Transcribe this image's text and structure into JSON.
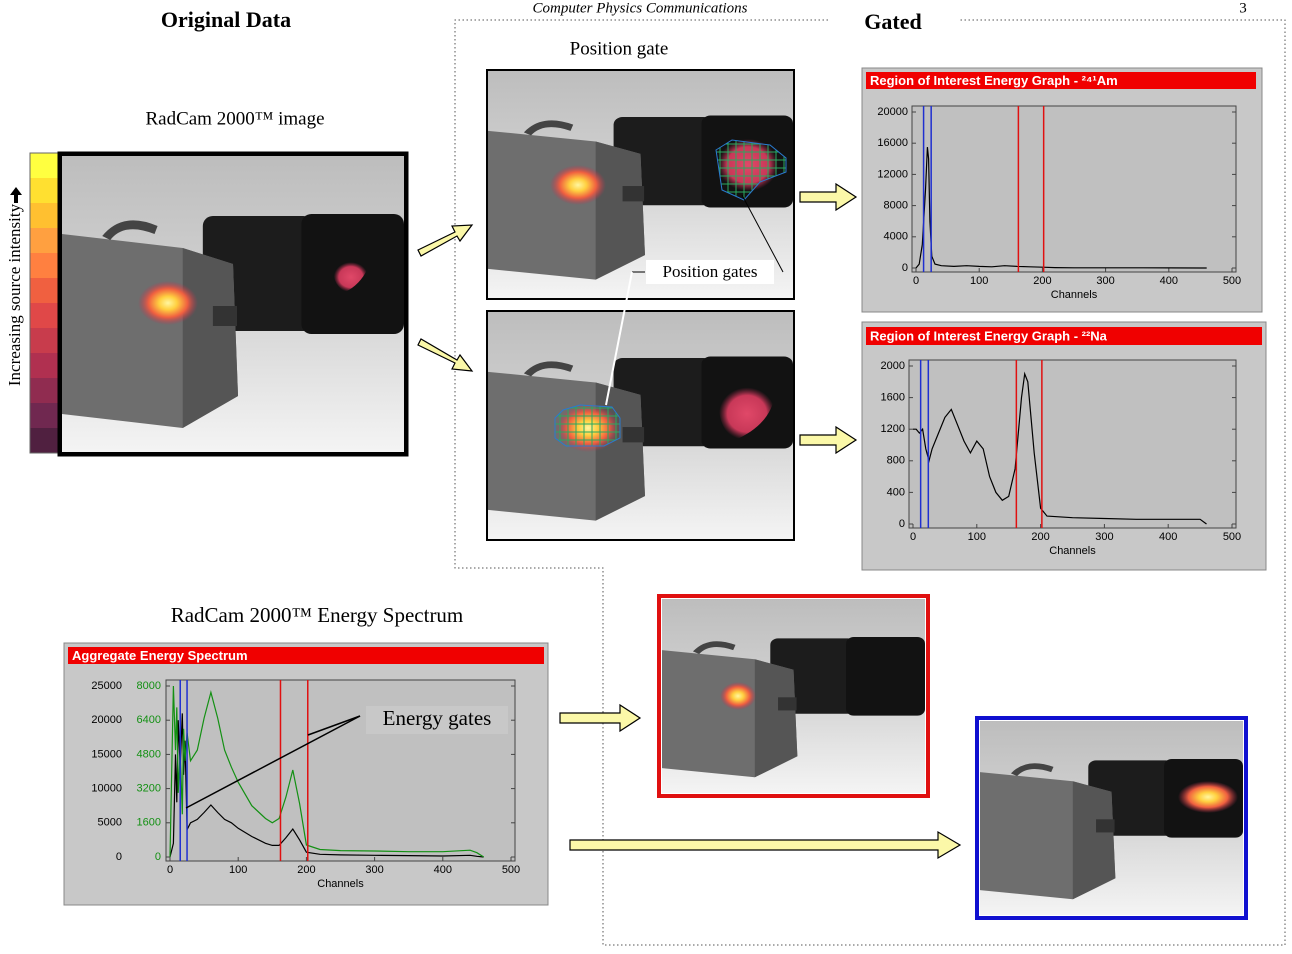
{
  "header": {
    "journal": "Computer Physics Communications",
    "page_number": "3"
  },
  "figure": {
    "original_heading": "Original Data",
    "gated_heading": "Gated",
    "position_gate_label": "Position gate",
    "image_caption": "RadCam 2000™ image",
    "colorbar_label": "Increasing source intensity",
    "position_gates_callout": "Position gates",
    "spectrum_caption": "RadCam 2000™ Energy Spectrum",
    "energy_gates_callout": "Energy gates"
  },
  "chart_data": [
    {
      "type": "line",
      "title": "Region of Interest Energy Graph - ²⁴¹Am",
      "xlabel": "Channels",
      "xlim": [
        0,
        500
      ],
      "xticks": [
        0,
        100,
        200,
        300,
        400,
        500
      ],
      "ylim": [
        0,
        20000
      ],
      "yticks": [
        0,
        4000,
        8000,
        12000,
        16000,
        20000
      ],
      "x": [
        0,
        5,
        10,
        15,
        18,
        20,
        22,
        25,
        30,
        40,
        60,
        80,
        100,
        120,
        140,
        160,
        180,
        200,
        220,
        250,
        300,
        350,
        400,
        450,
        460
      ],
      "series": [
        {
          "color": "#000000",
          "values": [
            0,
            500,
            3000,
            10000,
            15500,
            14000,
            6000,
            1500,
            500,
            300,
            200,
            300,
            200,
            150,
            300,
            200,
            150,
            100,
            50,
            30,
            20,
            20,
            10,
            0,
            0
          ]
        }
      ],
      "markers": [
        {
          "x": 12,
          "color": "#1f2fd0"
        },
        {
          "x": 24,
          "color": "#1f2fd0"
        },
        {
          "x": 162,
          "color": "#e01010"
        },
        {
          "x": 202,
          "color": "#e01010"
        }
      ]
    },
    {
      "type": "line",
      "title": "Region of Interest Energy Graph - ²²Na",
      "xlabel": "Channels",
      "xlim": [
        0,
        500
      ],
      "xticks": [
        0,
        100,
        200,
        300,
        400,
        500
      ],
      "ylim": [
        0,
        2000
      ],
      "yticks": [
        0,
        400,
        800,
        1200,
        1600,
        2000
      ],
      "x": [
        0,
        5,
        10,
        15,
        20,
        25,
        30,
        40,
        50,
        60,
        70,
        80,
        90,
        100,
        110,
        120,
        130,
        140,
        150,
        160,
        170,
        175,
        180,
        190,
        200,
        210,
        250,
        300,
        350,
        400,
        450,
        460
      ],
      "series": [
        {
          "color": "#000000",
          "values": [
            1200,
            1200,
            1150,
            1200,
            950,
            800,
            950,
            1150,
            1350,
            1450,
            1250,
            1050,
            900,
            1050,
            950,
            600,
            400,
            300,
            350,
            700,
            1600,
            1900,
            1800,
            900,
            200,
            100,
            80,
            70,
            60,
            60,
            60,
            0
          ]
        }
      ],
      "markers": [
        {
          "x": 12,
          "color": "#1f2fd0"
        },
        {
          "x": 24,
          "color": "#1f2fd0"
        },
        {
          "x": 162,
          "color": "#e01010"
        },
        {
          "x": 202,
          "color": "#e01010"
        }
      ]
    },
    {
      "type": "line",
      "title": "Aggregate Energy Spectrum",
      "xlabel": "Channels",
      "xlim": [
        0,
        500
      ],
      "xticks": [
        0,
        100,
        200,
        300,
        400,
        500
      ],
      "ylim": [
        0,
        25000
      ],
      "yticks": [
        0,
        5000,
        10000,
        15000,
        20000,
        25000
      ],
      "y2lim": [
        0,
        8000
      ],
      "y2ticks": [
        0,
        1600,
        3200,
        4800,
        6400,
        8000
      ],
      "x": [
        0,
        5,
        8,
        10,
        12,
        15,
        18,
        20,
        22,
        25,
        30,
        40,
        50,
        60,
        70,
        80,
        90,
        100,
        120,
        140,
        150,
        160,
        170,
        180,
        190,
        200,
        220,
        250,
        300,
        350,
        400,
        440,
        450,
        460
      ],
      "series": [
        {
          "color": "#000000",
          "values": [
            0,
            2000,
            15000,
            8000,
            20000,
            13000,
            21000,
            12000,
            17000,
            4000,
            5000,
            5500,
            6500,
            7600,
            6500,
            5500,
            5000,
            4200,
            3000,
            2000,
            1700,
            1700,
            2800,
            4100,
            2500,
            700,
            400,
            300,
            250,
            200,
            150,
            250,
            100,
            0
          ]
        },
        {
          "color": "#139013",
          "axis": "y2",
          "values": [
            0,
            8000,
            5000,
            7000,
            3000,
            5000,
            2000,
            6000,
            4500,
            5800,
            4500,
            5000,
            6500,
            7700,
            6500,
            5000,
            4200,
            3500,
            2400,
            1800,
            1600,
            1800,
            2800,
            4070,
            2500,
            560,
            350,
            300,
            280,
            250,
            250,
            320,
            200,
            0
          ]
        }
      ],
      "markers": [
        {
          "x": 15,
          "color": "#1f2fd0"
        },
        {
          "x": 25,
          "color": "#1f2fd0"
        },
        {
          "x": 162,
          "color": "#e01010"
        },
        {
          "x": 202,
          "color": "#e01010"
        }
      ]
    }
  ]
}
